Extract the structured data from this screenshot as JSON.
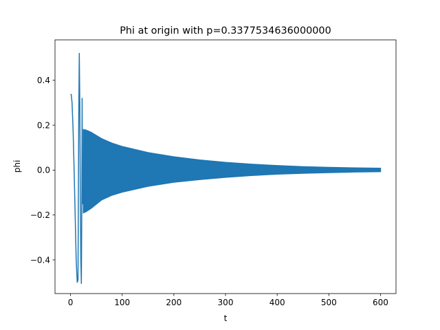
{
  "chart_data": {
    "type": "line",
    "title": "Phi at origin with p=0.3377534636000000",
    "xlabel": "t",
    "ylabel": "phi",
    "xlim": [
      -30,
      630
    ],
    "ylim": [
      -0.55,
      0.58
    ],
    "xticks": [
      0,
      100,
      200,
      300,
      400,
      500,
      600
    ],
    "xtick_labels": [
      "0",
      "100",
      "200",
      "300",
      "400",
      "500",
      "600"
    ],
    "yticks": [
      -0.4,
      -0.2,
      0.0,
      0.2,
      0.4
    ],
    "ytick_labels": [
      "−0.4",
      "−0.2",
      "0.0",
      "0.2",
      "0.4"
    ],
    "grid": false,
    "legend": "none",
    "series": [
      {
        "color": "#1f77b4",
        "transient": {
          "t": [
            0,
            1.5,
            3,
            5,
            7,
            9,
            11,
            13,
            14.5,
            16,
            17,
            18,
            19,
            20,
            21,
            22,
            22.5,
            23,
            23.8,
            24.5,
            25.5
          ],
          "phi": [
            0.338,
            0.336,
            0.3,
            0.18,
            0.0,
            -0.2,
            -0.4,
            -0.5,
            -0.49,
            0.25,
            0.52,
            0.3,
            -0.1,
            -0.4,
            -0.505,
            -0.1,
            0.32,
            0.05,
            -0.15,
            -0.05,
            0.1
          ]
        },
        "oscillation_envelope": {
          "t": [
            25,
            30,
            40,
            60,
            80,
            100,
            150,
            200,
            250,
            300,
            350,
            400,
            450,
            500,
            550,
            600
          ],
          "upper": [
            0.18,
            0.178,
            0.168,
            0.14,
            0.12,
            0.105,
            0.078,
            0.059,
            0.045,
            0.034,
            0.026,
            0.02,
            0.015,
            0.012,
            0.0095,
            0.008
          ],
          "lower": [
            -0.19,
            -0.185,
            -0.17,
            -0.133,
            -0.112,
            -0.098,
            -0.072,
            -0.054,
            -0.042,
            -0.032,
            -0.024,
            -0.018,
            -0.014,
            -0.011,
            -0.0085,
            -0.007
          ]
        }
      }
    ]
  }
}
